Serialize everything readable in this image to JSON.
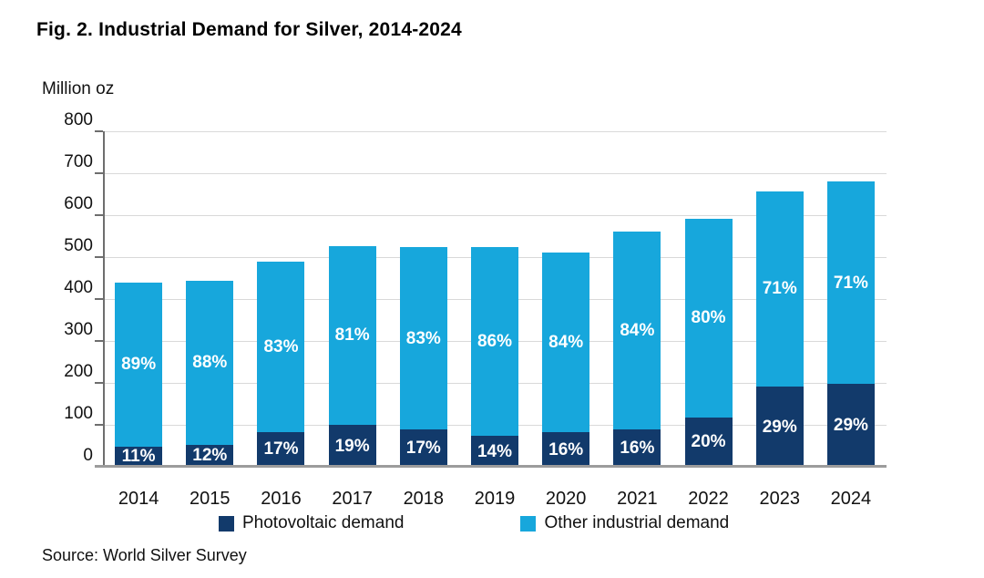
{
  "figure": {
    "title": "Fig. 2. Industrial Demand for Silver, 2014-2024",
    "unit_label": "Million oz",
    "source": "Source: World Silver Survey"
  },
  "colors": {
    "photovoltaic": "#123A6B",
    "other_industrial": "#17A7DC",
    "gridline": "#D9D9D9",
    "axis_line": "#6E6E6E",
    "baseline": "#9C9C9C",
    "bar_label_text": "#FFFFFF",
    "text": "#111111"
  },
  "chart_data": {
    "type": "bar",
    "stacked": true,
    "title": "Fig. 2. Industrial Demand for Silver, 2014-2024",
    "xlabel": "",
    "ylabel": "Million oz",
    "ylim": [
      0,
      800
    ],
    "ytick_step": 100,
    "yticks": [
      0,
      100,
      200,
      300,
      400,
      500,
      600,
      700,
      800
    ],
    "grid": true,
    "legend_position": "bottom",
    "categories": [
      "2014",
      "2015",
      "2016",
      "2017",
      "2018",
      "2019",
      "2020",
      "2021",
      "2022",
      "2023",
      "2024"
    ],
    "totals": [
      440,
      443,
      490,
      527,
      524,
      523,
      511,
      562,
      592,
      657,
      680
    ],
    "series": [
      {
        "name": "Photovoltaic demand",
        "color": "#123A6B",
        "values": [
          48,
          53,
          83,
          100,
          89,
          73,
          82,
          90,
          118,
          191,
          197
        ],
        "labels": [
          "11%",
          "12%",
          "17%",
          "19%",
          "17%",
          "14%",
          "16%",
          "16%",
          "20%",
          "29%",
          "29%"
        ]
      },
      {
        "name": "Other industrial demand",
        "color": "#17A7DC",
        "values": [
          392,
          390,
          407,
          427,
          435,
          450,
          429,
          472,
          474,
          466,
          483
        ],
        "labels": [
          "89%",
          "88%",
          "83%",
          "81%",
          "83%",
          "86%",
          "84%",
          "84%",
          "80%",
          "71%",
          "71%"
        ]
      }
    ]
  },
  "legend": {
    "items": [
      {
        "label": "Photovoltaic demand",
        "color": "#123A6B"
      },
      {
        "label": "Other industrial demand",
        "color": "#17A7DC"
      }
    ]
  }
}
